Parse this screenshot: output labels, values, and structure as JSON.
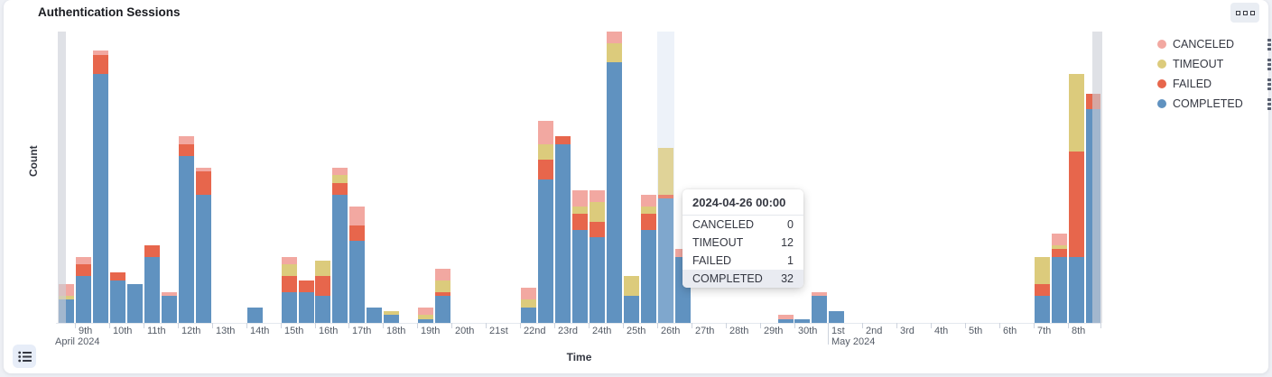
{
  "panel": {
    "title": "Authentication Sessions",
    "options_icon": "boxes-horizontal-icon",
    "legend_toggle_icon": "legend-list-icon"
  },
  "legend": {
    "position": "right-top",
    "kebab_icon": "boxes-vertical-icon",
    "items": [
      {
        "label": "CANCELED",
        "color": "#f2a8a1"
      },
      {
        "label": "TIMEOUT",
        "color": "#dccb7c"
      },
      {
        "label": "FAILED",
        "color": "#e7664c"
      },
      {
        "label": "COMPLETED",
        "color": "#6092c0"
      }
    ]
  },
  "tooltip": {
    "title": "2024-04-26 00:00",
    "rows": [
      {
        "label": "CANCELED",
        "value": "0",
        "highlighted": false
      },
      {
        "label": "TIMEOUT",
        "value": "12",
        "highlighted": false
      },
      {
        "label": "FAILED",
        "value": "1",
        "highlighted": false
      },
      {
        "label": "COMPLETED",
        "value": "32",
        "highlighted": true
      }
    ]
  },
  "chart_data": {
    "type": "bar",
    "stacked": true,
    "bucket_interval_hours": 12,
    "title": "Authentication Sessions",
    "xlabel": "Time",
    "ylabel": "Count",
    "y_tick_labels_visible": false,
    "ylim": [
      0,
      75
    ],
    "grid": false,
    "series_order_bottom_to_top": [
      "COMPLETED",
      "FAILED",
      "TIMEOUT",
      "CANCELED"
    ],
    "colors": {
      "COMPLETED": "#6092c0",
      "FAILED": "#e7664c",
      "TIMEOUT": "#dccb7c",
      "CANCELED": "#f2a8a1",
      "hover_band": "#edf2f9",
      "partial_bucket_overlay": "rgba(203,206,215,0.62)"
    },
    "x_day_tick_labels": [
      "9th",
      "10th",
      "11th",
      "12th",
      "13th",
      "14th",
      "15th",
      "16th",
      "17th",
      "18th",
      "19th",
      "20th",
      "21st",
      "22nd",
      "23rd",
      "24th",
      "25th",
      "26th",
      "27th",
      "28th",
      "29th",
      "30th",
      "1st",
      "2nd",
      "3rd",
      "4th",
      "5th",
      "6th",
      "7th",
      "8th"
    ],
    "x_month_labels": [
      {
        "text": "April 2024",
        "at_day_index": 0
      },
      {
        "text": "May 2024",
        "at_day_index": 22
      }
    ],
    "hovered_bucket": "2024-04-26 00:00",
    "buckets": [
      {
        "time": "2024-04-08 12:00",
        "COMPLETED": 6,
        "FAILED": 0,
        "TIMEOUT": 1,
        "CANCELED": 3,
        "partial": true
      },
      {
        "time": "2024-04-09 00:00",
        "COMPLETED": 12,
        "FAILED": 3,
        "TIMEOUT": 0,
        "CANCELED": 2
      },
      {
        "time": "2024-04-09 12:00",
        "COMPLETED": 64,
        "FAILED": 5,
        "TIMEOUT": 0,
        "CANCELED": 1
      },
      {
        "time": "2024-04-10 00:00",
        "COMPLETED": 11,
        "FAILED": 2,
        "TIMEOUT": 0,
        "CANCELED": 0
      },
      {
        "time": "2024-04-10 12:00",
        "COMPLETED": 10,
        "FAILED": 0,
        "TIMEOUT": 0,
        "CANCELED": 0
      },
      {
        "time": "2024-04-11 00:00",
        "COMPLETED": 17,
        "FAILED": 3,
        "TIMEOUT": 0,
        "CANCELED": 0
      },
      {
        "time": "2024-04-11 12:00",
        "COMPLETED": 7,
        "FAILED": 0,
        "TIMEOUT": 0,
        "CANCELED": 1
      },
      {
        "time": "2024-04-12 00:00",
        "COMPLETED": 43,
        "FAILED": 3,
        "TIMEOUT": 0,
        "CANCELED": 2
      },
      {
        "time": "2024-04-12 12:00",
        "COMPLETED": 33,
        "FAILED": 6,
        "TIMEOUT": 0,
        "CANCELED": 1
      },
      {
        "time": "2024-04-14 00:00",
        "COMPLETED": 4,
        "FAILED": 0,
        "TIMEOUT": 0,
        "CANCELED": 0
      },
      {
        "time": "2024-04-15 00:00",
        "COMPLETED": 8,
        "FAILED": 4,
        "TIMEOUT": 3,
        "CANCELED": 2
      },
      {
        "time": "2024-04-15 12:00",
        "COMPLETED": 8,
        "FAILED": 3,
        "TIMEOUT": 0,
        "CANCELED": 0
      },
      {
        "time": "2024-04-16 00:00",
        "COMPLETED": 7,
        "FAILED": 5,
        "TIMEOUT": 4,
        "CANCELED": 0
      },
      {
        "time": "2024-04-16 12:00",
        "COMPLETED": 33,
        "FAILED": 3,
        "TIMEOUT": 2,
        "CANCELED": 2
      },
      {
        "time": "2024-04-17 00:00",
        "COMPLETED": 21,
        "FAILED": 4,
        "TIMEOUT": 0,
        "CANCELED": 5
      },
      {
        "time": "2024-04-17 12:00",
        "COMPLETED": 4,
        "FAILED": 0,
        "TIMEOUT": 0,
        "CANCELED": 0
      },
      {
        "time": "2024-04-18 00:00",
        "COMPLETED": 2,
        "FAILED": 0,
        "TIMEOUT": 1,
        "CANCELED": 0
      },
      {
        "time": "2024-04-19 00:00",
        "COMPLETED": 1,
        "FAILED": 0,
        "TIMEOUT": 1,
        "CANCELED": 2
      },
      {
        "time": "2024-04-19 12:00",
        "COMPLETED": 7,
        "FAILED": 1,
        "TIMEOUT": 3,
        "CANCELED": 3
      },
      {
        "time": "2024-04-22 00:00",
        "COMPLETED": 4,
        "FAILED": 0,
        "TIMEOUT": 2,
        "CANCELED": 3
      },
      {
        "time": "2024-04-22 12:00",
        "COMPLETED": 37,
        "FAILED": 5,
        "TIMEOUT": 4,
        "CANCELED": 6
      },
      {
        "time": "2024-04-23 00:00",
        "COMPLETED": 46,
        "FAILED": 2,
        "TIMEOUT": 0,
        "CANCELED": 0
      },
      {
        "time": "2024-04-23 12:00",
        "COMPLETED": 24,
        "FAILED": 4,
        "TIMEOUT": 2,
        "CANCELED": 4
      },
      {
        "time": "2024-04-24 00:00",
        "COMPLETED": 22,
        "FAILED": 4,
        "TIMEOUT": 5,
        "CANCELED": 3
      },
      {
        "time": "2024-04-24 12:00",
        "COMPLETED": 67,
        "FAILED": 0,
        "TIMEOUT": 5,
        "CANCELED": 3
      },
      {
        "time": "2024-04-25 00:00",
        "COMPLETED": 7,
        "FAILED": 0,
        "TIMEOUT": 5,
        "CANCELED": 0
      },
      {
        "time": "2024-04-25 12:00",
        "COMPLETED": 24,
        "FAILED": 4,
        "TIMEOUT": 2,
        "CANCELED": 3
      },
      {
        "time": "2024-04-26 00:00",
        "COMPLETED": 32,
        "FAILED": 1,
        "TIMEOUT": 12,
        "CANCELED": 0,
        "hovered": true
      },
      {
        "time": "2024-04-26 12:00",
        "COMPLETED": 17,
        "FAILED": 0,
        "TIMEOUT": 0,
        "CANCELED": 2
      },
      {
        "time": "2024-04-29 12:00",
        "COMPLETED": 1,
        "FAILED": 0,
        "TIMEOUT": 0,
        "CANCELED": 1
      },
      {
        "time": "2024-04-30 00:00",
        "COMPLETED": 1,
        "FAILED": 0,
        "TIMEOUT": 0,
        "CANCELED": 0
      },
      {
        "time": "2024-04-30 12:00",
        "COMPLETED": 7,
        "FAILED": 0,
        "TIMEOUT": 0,
        "CANCELED": 1
      },
      {
        "time": "2024-05-01 00:00",
        "COMPLETED": 3,
        "FAILED": 0,
        "TIMEOUT": 0,
        "CANCELED": 0
      },
      {
        "time": "2024-05-07 00:00",
        "COMPLETED": 7,
        "FAILED": 3,
        "TIMEOUT": 7,
        "CANCELED": 0
      },
      {
        "time": "2024-05-07 12:00",
        "COMPLETED": 17,
        "FAILED": 2,
        "TIMEOUT": 1,
        "CANCELED": 3
      },
      {
        "time": "2024-05-08 00:00",
        "COMPLETED": 17,
        "FAILED": 27,
        "TIMEOUT": 20,
        "CANCELED": 0
      },
      {
        "time": "2024-05-08 12:00",
        "COMPLETED": 55,
        "FAILED": 4,
        "TIMEOUT": 0,
        "CANCELED": 0,
        "partial": true
      }
    ]
  }
}
